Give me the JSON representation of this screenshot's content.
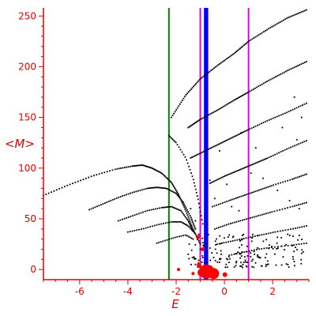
{
  "chart_data": {
    "type": "scatter",
    "title": "",
    "xlabel": "E",
    "ylabel": "<M>",
    "xlim": [
      -7.5,
      3.5
    ],
    "ylim": [
      -10,
      258
    ],
    "x_ticks": [
      -6,
      -4,
      -2,
      0,
      2
    ],
    "x_tick_labels": [
      "-6",
      "-4",
      "-2",
      "0",
      "2"
    ],
    "y_ticks": [
      0,
      50,
      100,
      150,
      200,
      250
    ],
    "y_tick_labels": [
      "0",
      "50",
      "100",
      "150",
      "200",
      "250"
    ],
    "grid": false,
    "colors": {
      "axis": "#e00000",
      "points": "#000000",
      "blobs": "#ff0000",
      "green_line": "#008000",
      "magenta_line": "#e000e0",
      "blue_line": "#0000ff"
    },
    "vertical_lines": [
      {
        "x": -2.3,
        "color": "#008000"
      },
      {
        "x": -1.0,
        "color": "#e000e0"
      },
      {
        "x": -0.8,
        "color": "#0000ff"
      },
      {
        "x": -0.72,
        "color": "#0000ff"
      },
      {
        "x": 1.0,
        "color": "#e000e0"
      }
    ],
    "curves": [
      {
        "pts": [
          [
            -7.5,
            73
          ],
          [
            -6.5,
            83
          ],
          [
            -5.5,
            92
          ],
          [
            -4.5,
            99
          ],
          [
            -3.8,
            102
          ],
          [
            -3.4,
            103
          ],
          [
            -3.0,
            100
          ],
          [
            -2.6,
            95
          ],
          [
            -2.2,
            86
          ],
          [
            -1.9,
            74
          ],
          [
            -1.6,
            58
          ],
          [
            -1.3,
            40
          ],
          [
            -1.0,
            25
          ]
        ],
        "n": 110
      },
      {
        "pts": [
          [
            -5.6,
            59
          ],
          [
            -5.0,
            65
          ],
          [
            -4.4,
            71
          ],
          [
            -3.8,
            76
          ],
          [
            -3.2,
            80
          ],
          [
            -2.8,
            81
          ],
          [
            -2.4,
            80
          ],
          [
            -2.0,
            75
          ],
          [
            -1.7,
            66
          ],
          [
            -1.4,
            52
          ],
          [
            -1.2,
            40
          ]
        ],
        "n": 75
      },
      {
        "pts": [
          [
            -4.4,
            48
          ],
          [
            -3.8,
            53
          ],
          [
            -3.2,
            58
          ],
          [
            -2.6,
            61
          ],
          [
            -2.2,
            62
          ],
          [
            -1.8,
            58
          ],
          [
            -1.5,
            48
          ],
          [
            -1.3,
            38
          ]
        ],
        "n": 50
      },
      {
        "pts": [
          [
            -4.0,
            37
          ],
          [
            -3.4,
            40
          ],
          [
            -2.8,
            44
          ],
          [
            -2.2,
            47
          ],
          [
            -1.8,
            47
          ],
          [
            -1.5,
            43
          ],
          [
            -1.2,
            35
          ]
        ],
        "n": 40
      },
      {
        "pts": [
          [
            -2.8,
            26
          ],
          [
            -2.4,
            29
          ],
          [
            -2.0,
            32
          ],
          [
            -1.6,
            34
          ],
          [
            -1.3,
            30
          ]
        ],
        "n": 20
      },
      {
        "pts": [
          [
            -2.3,
            132
          ],
          [
            -2.0,
            125
          ],
          [
            -1.6,
            110
          ],
          [
            -1.3,
            90
          ],
          [
            -1.1,
            70
          ],
          [
            -0.9,
            45
          ]
        ],
        "n": 32
      },
      {
        "pts": [
          [
            -2.2,
            150
          ],
          [
            -1.6,
            172
          ],
          [
            -1.0,
            188
          ],
          [
            -0.3,
            201
          ],
          [
            0.4,
            213
          ],
          [
            1.0,
            225
          ],
          [
            1.8,
            237
          ],
          [
            2.6,
            248
          ],
          [
            3.4,
            256
          ]
        ],
        "n": 95
      },
      {
        "pts": [
          [
            -1.5,
            140
          ],
          [
            -1.0,
            148
          ],
          [
            -0.3,
            157
          ],
          [
            0.4,
            167
          ],
          [
            1.0,
            175
          ],
          [
            1.8,
            186
          ],
          [
            2.6,
            196
          ],
          [
            3.4,
            205
          ]
        ],
        "n": 80
      },
      {
        "pts": [
          [
            -1.4,
            110
          ],
          [
            -0.8,
            117
          ],
          [
            -0.2,
            124
          ],
          [
            0.4,
            131
          ],
          [
            1.0,
            138
          ],
          [
            1.8,
            147
          ],
          [
            2.6,
            155
          ],
          [
            3.4,
            164
          ]
        ],
        "n": 70
      },
      {
        "pts": [
          [
            -0.6,
            85
          ],
          [
            0.0,
            92
          ],
          [
            0.6,
            98
          ],
          [
            1.2,
            104
          ],
          [
            1.8,
            110
          ],
          [
            2.6,
            119
          ],
          [
            3.4,
            127
          ]
        ],
        "n": 60
      },
      {
        "pts": [
          [
            -0.5,
            62
          ],
          [
            0.2,
            68
          ],
          [
            0.8,
            73
          ],
          [
            1.4,
            78
          ],
          [
            2.0,
            83
          ],
          [
            2.8,
            89
          ],
          [
            3.4,
            94
          ]
        ],
        "n": 50
      },
      {
        "pts": [
          [
            -0.4,
            40
          ],
          [
            0.2,
            45
          ],
          [
            0.8,
            49
          ],
          [
            1.4,
            53
          ],
          [
            2.0,
            57
          ],
          [
            2.8,
            62
          ],
          [
            3.4,
            66
          ]
        ],
        "n": 45
      },
      {
        "pts": [
          [
            -0.3,
            25
          ],
          [
            0.3,
            28
          ],
          [
            0.9,
            31
          ],
          [
            1.5,
            34
          ],
          [
            2.1,
            37
          ],
          [
            2.8,
            40
          ],
          [
            3.4,
            43
          ]
        ],
        "n": 40
      },
      {
        "pts": [
          [
            0.2,
            14
          ],
          [
            0.8,
            17
          ],
          [
            1.4,
            20
          ],
          [
            2.0,
            22
          ],
          [
            2.8,
            24
          ],
          [
            3.4,
            26
          ]
        ],
        "n": 30
      }
    ],
    "cluster": {
      "x_range": [
        -1.5,
        3.4
      ],
      "y_range": [
        2,
        35
      ],
      "n": 170
    },
    "isolated_points": [
      [
        -1.4,
        60
      ],
      [
        -1.2,
        48
      ],
      [
        -0.6,
        88
      ],
      [
        -0.4,
        70
      ],
      [
        0.1,
        84
      ],
      [
        0.3,
        62
      ],
      [
        0.6,
        58
      ],
      [
        1.1,
        95
      ],
      [
        1.6,
        90
      ],
      [
        2.2,
        78
      ],
      [
        2.7,
        68
      ],
      [
        3.1,
        60
      ],
      [
        -0.2,
        117
      ],
      [
        0.7,
        135
      ],
      [
        1.3,
        120
      ],
      [
        2.4,
        140
      ],
      [
        3.0,
        128
      ],
      [
        -1.0,
        20
      ],
      [
        -0.2,
        10
      ],
      [
        0.5,
        8
      ],
      [
        3.2,
        150
      ],
      [
        2.9,
        170
      ],
      [
        -1.2,
        5
      ]
    ],
    "blobs": [
      {
        "x": -0.75,
        "y": -2,
        "r": 9
      },
      {
        "x": -0.45,
        "y": -4,
        "r": 7
      },
      {
        "x": -0.95,
        "y": -3,
        "r": 5
      },
      {
        "x": -0.6,
        "y": 1,
        "r": 4
      },
      {
        "x": -1.05,
        "y": 4,
        "r": 3
      },
      {
        "x": -0.9,
        "y": 20,
        "r": 2.5
      },
      {
        "x": -1.1,
        "y": 32,
        "r": 2.5
      },
      {
        "x": 0.02,
        "y": -5,
        "r": 3
      },
      {
        "x": -1.9,
        "y": 0,
        "r": 2
      },
      {
        "x": -1.3,
        "y": -4,
        "r": 2
      }
    ]
  }
}
